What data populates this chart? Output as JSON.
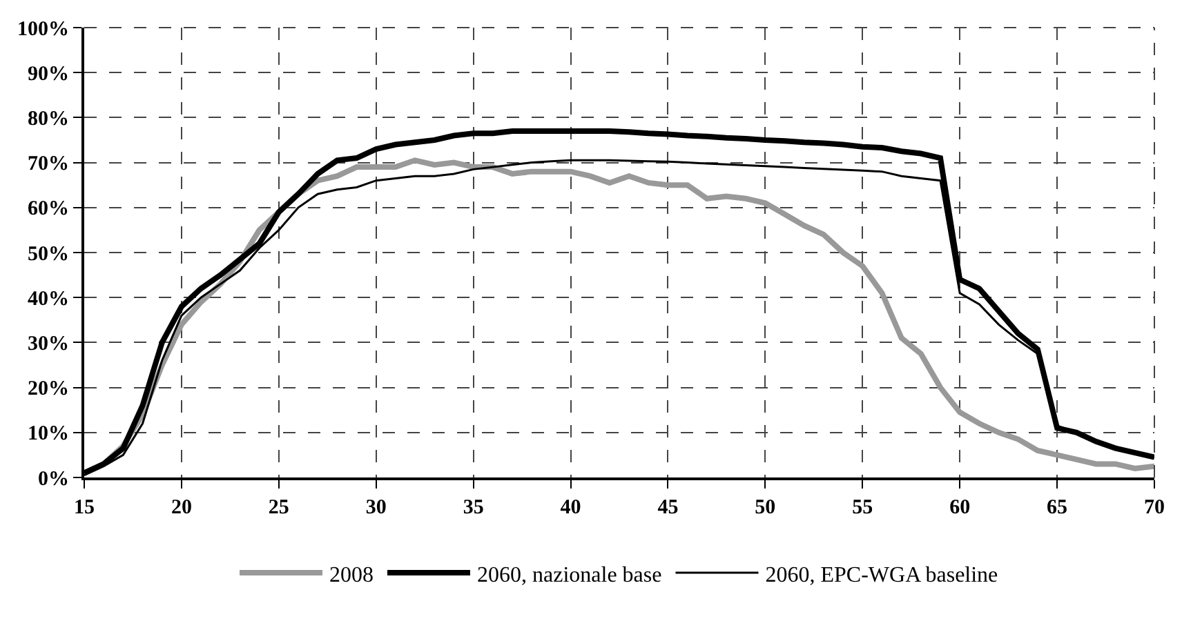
{
  "chart_data": {
    "type": "line",
    "x": [
      15,
      16,
      17,
      18,
      19,
      20,
      21,
      22,
      23,
      24,
      25,
      26,
      27,
      28,
      29,
      30,
      31,
      32,
      33,
      34,
      35,
      36,
      37,
      38,
      39,
      40,
      41,
      42,
      43,
      44,
      45,
      46,
      47,
      48,
      49,
      50,
      51,
      52,
      53,
      54,
      55,
      56,
      57,
      58,
      59,
      60,
      61,
      62,
      63,
      64,
      65,
      66,
      67,
      68,
      69,
      70
    ],
    "series": [
      {
        "name": "2008",
        "color": "#999999",
        "values": [
          1,
          3,
          7,
          14,
          25,
          34,
          39,
          43,
          48,
          55,
          59,
          63,
          66,
          67,
          69,
          69,
          69,
          70.5,
          69.5,
          70,
          69,
          69,
          67.5,
          68,
          68,
          68,
          67,
          65.5,
          67,
          65.5,
          65,
          65,
          62,
          62.5,
          62,
          61,
          58.5,
          56,
          54,
          50,
          47,
          41,
          31,
          27.5,
          20,
          14.5,
          12,
          10,
          8.5,
          6,
          5,
          4,
          3,
          3,
          2,
          2.5
        ]
      },
      {
        "name": "2060, nazionale base",
        "color": "#000000",
        "values": [
          1,
          3,
          6.5,
          16,
          30,
          38,
          42,
          45,
          48.5,
          52,
          59,
          63,
          67.5,
          70.5,
          71,
          73,
          74,
          74.5,
          75,
          76,
          76.5,
          76.5,
          77,
          77,
          77,
          77,
          77,
          77,
          76.8,
          76.5,
          76.3,
          76,
          75.8,
          75.5,
          75.3,
          75,
          74.8,
          74.5,
          74.3,
          74,
          73.5,
          73.3,
          72.5,
          72,
          71,
          44,
          42,
          37,
          32,
          28.5,
          11,
          10,
          8,
          6.5,
          5.5,
          4.5
        ]
      },
      {
        "name": "2060, EPC-WGA baseline",
        "color": "#000000",
        "values": [
          0.5,
          2.5,
          5,
          12,
          26,
          36,
          40,
          43,
          46,
          51,
          55,
          60,
          63,
          64,
          64.5,
          66,
          66.5,
          67,
          67,
          67.5,
          68.5,
          69,
          69.5,
          70,
          70.3,
          70.5,
          70.5,
          70.5,
          70.4,
          70.3,
          70.2,
          70,
          69.8,
          69.6,
          69.4,
          69.2,
          69,
          68.8,
          68.6,
          68.4,
          68.2,
          68,
          67,
          66.5,
          66,
          41,
          38.5,
          34,
          30.5,
          27.5,
          11.5,
          10,
          8,
          6.5,
          5.5,
          4.5
        ]
      }
    ],
    "xlim": [
      15,
      70
    ],
    "xticks": [
      15,
      20,
      25,
      30,
      35,
      40,
      45,
      50,
      55,
      60,
      65,
      70
    ],
    "ylim": [
      0,
      100
    ],
    "yticks": [
      {
        "value": 0,
        "label": "0%"
      },
      {
        "value": 10,
        "label": "10%"
      },
      {
        "value": 20,
        "label": "20%"
      },
      {
        "value": 30,
        "label": "30%"
      },
      {
        "value": 40,
        "label": "40%"
      },
      {
        "value": 50,
        "label": "50%"
      },
      {
        "value": 60,
        "label": "60%"
      },
      {
        "value": 70,
        "label": "70%"
      },
      {
        "value": 80,
        "label": "80%"
      },
      {
        "value": 90,
        "label": "90%"
      },
      {
        "value": 100,
        "label": "100%"
      }
    ],
    "grid": true,
    "legend": "bottom",
    "marker": "none",
    "line_style": "solid"
  }
}
